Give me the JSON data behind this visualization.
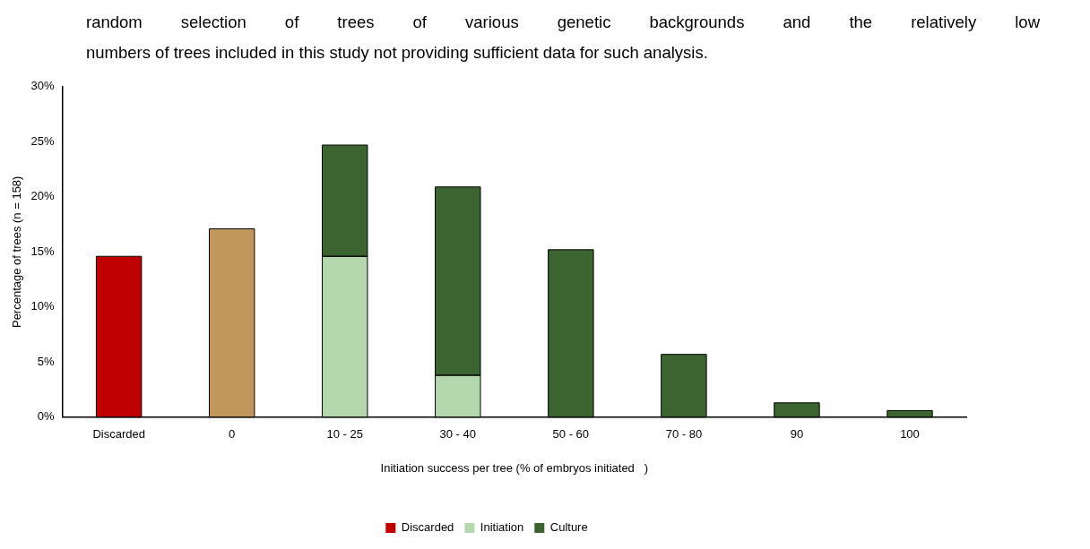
{
  "chart_data": {
    "type": "bar",
    "stacked": true,
    "xlabel": "Initiation success per tree (% of embryos initiated   )",
    "ylabel": "Percentage of trees (n = 158)",
    "annotations": [
      "random selection of trees of various genetic backgrounds and the relatively low",
      "numbers of trees included in this study not providing sufficient data for such analysis."
    ],
    "categories": [
      "Discarded",
      "0",
      "10 - 25",
      "30 - 40",
      "50 - 60",
      "70 - 80",
      "90",
      "100"
    ],
    "series": [
      {
        "name": "Discarded",
        "color": "#c00000",
        "values": [
          14.6,
          null,
          null,
          null,
          null,
          null,
          null,
          null
        ]
      },
      {
        "color": "#c2975b",
        "values": [
          null,
          17.1,
          null,
          null,
          null,
          null,
          null,
          null
        ]
      },
      {
        "name": "Initiation",
        "color": "#b5d7ae",
        "values": [
          null,
          null,
          14.6,
          3.8,
          null,
          null,
          null,
          null
        ]
      },
      {
        "name": "Culture",
        "color": "#3c6431",
        "values": [
          null,
          null,
          10.1,
          17.1,
          15.2,
          5.7,
          1.3,
          0.6
        ]
      }
    ],
    "ylim": [
      0,
      30
    ],
    "yticks": [
      {
        "value": 0,
        "label": "0%"
      },
      {
        "value": 5,
        "label": "5%"
      },
      {
        "value": 10,
        "label": "10%"
      },
      {
        "value": 15,
        "label": "15%"
      },
      {
        "value": 20,
        "label": "20%"
      },
      {
        "value": 25,
        "label": "25%"
      },
      {
        "value": 30,
        "label": "30%"
      }
    ],
    "grid": false,
    "legend": "bottom"
  }
}
